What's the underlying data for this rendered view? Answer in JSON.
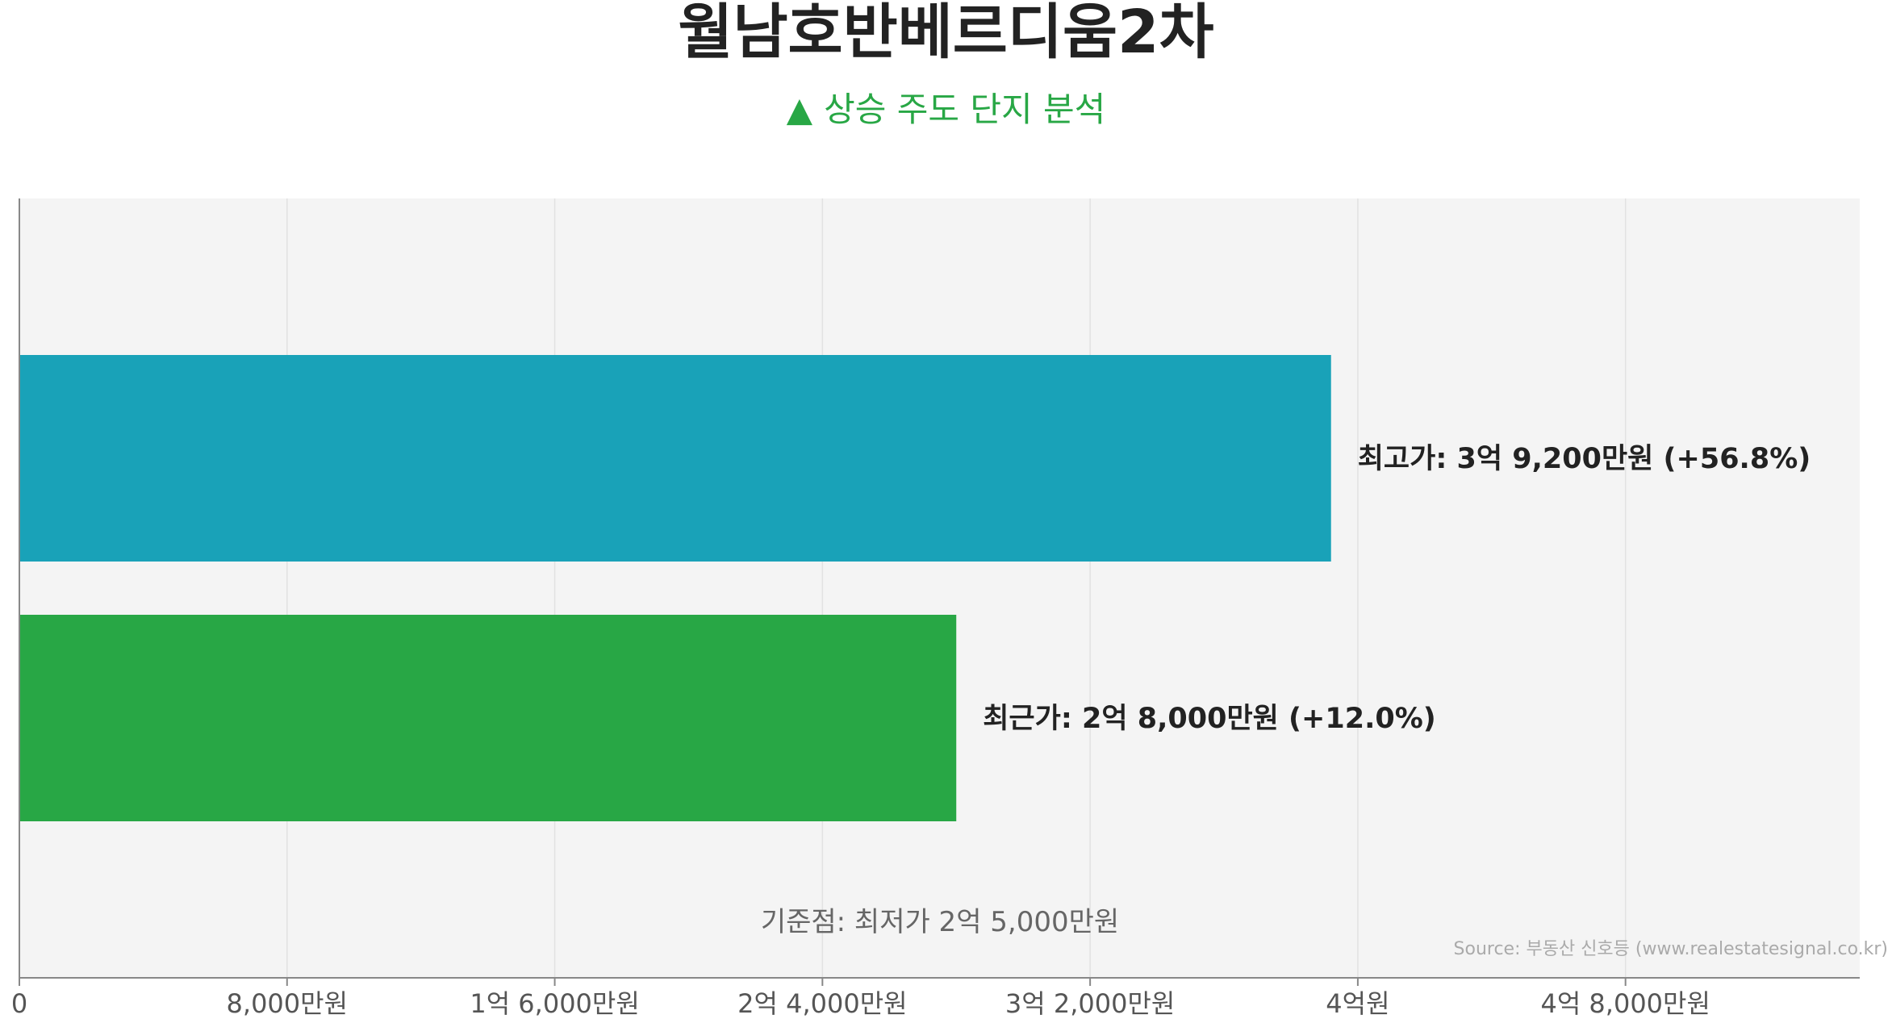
{
  "title": "월남호반베르디움2차",
  "subtitle": {
    "icon": "triangle-up-icon",
    "symbol": "▲",
    "text": "상승 주도 단지 분석"
  },
  "colors": {
    "high_bar": "#19a2b8",
    "recent_bar": "#28a745",
    "plot_bg": "#f4f4f4",
    "grid": "#e2e2e2",
    "axis": "#888888",
    "subtitle": "#28a745"
  },
  "chart_data": {
    "type": "bar",
    "orientation": "horizontal",
    "xlim": [
      0,
      55000
    ],
    "xticks": [
      {
        "value": 0,
        "label": "0"
      },
      {
        "value": 8000,
        "label": "8,000만원"
      },
      {
        "value": 16000,
        "label": "1억 6,000만원"
      },
      {
        "value": 24000,
        "label": "2억 4,000만원"
      },
      {
        "value": 32000,
        "label": "3억 2,000만원"
      },
      {
        "value": 40000,
        "label": "4억원"
      },
      {
        "value": 48000,
        "label": "4억 8,000만원"
      }
    ],
    "grid": true,
    "bars": [
      {
        "name": "최고가",
        "value": 39200,
        "label": "최고가: 3억 9,200만원 (+56.8%)",
        "color": "#19a2b8"
      },
      {
        "name": "최근가",
        "value": 28000,
        "label": "최근가: 2억 8,000만원 (+12.0%)",
        "color": "#28a745"
      }
    ],
    "baseline_note": "기준점: 최저가 2억 5,000만원",
    "source": "Source: 부동산 신호등 (www.realestatesignal.co.kr)"
  }
}
